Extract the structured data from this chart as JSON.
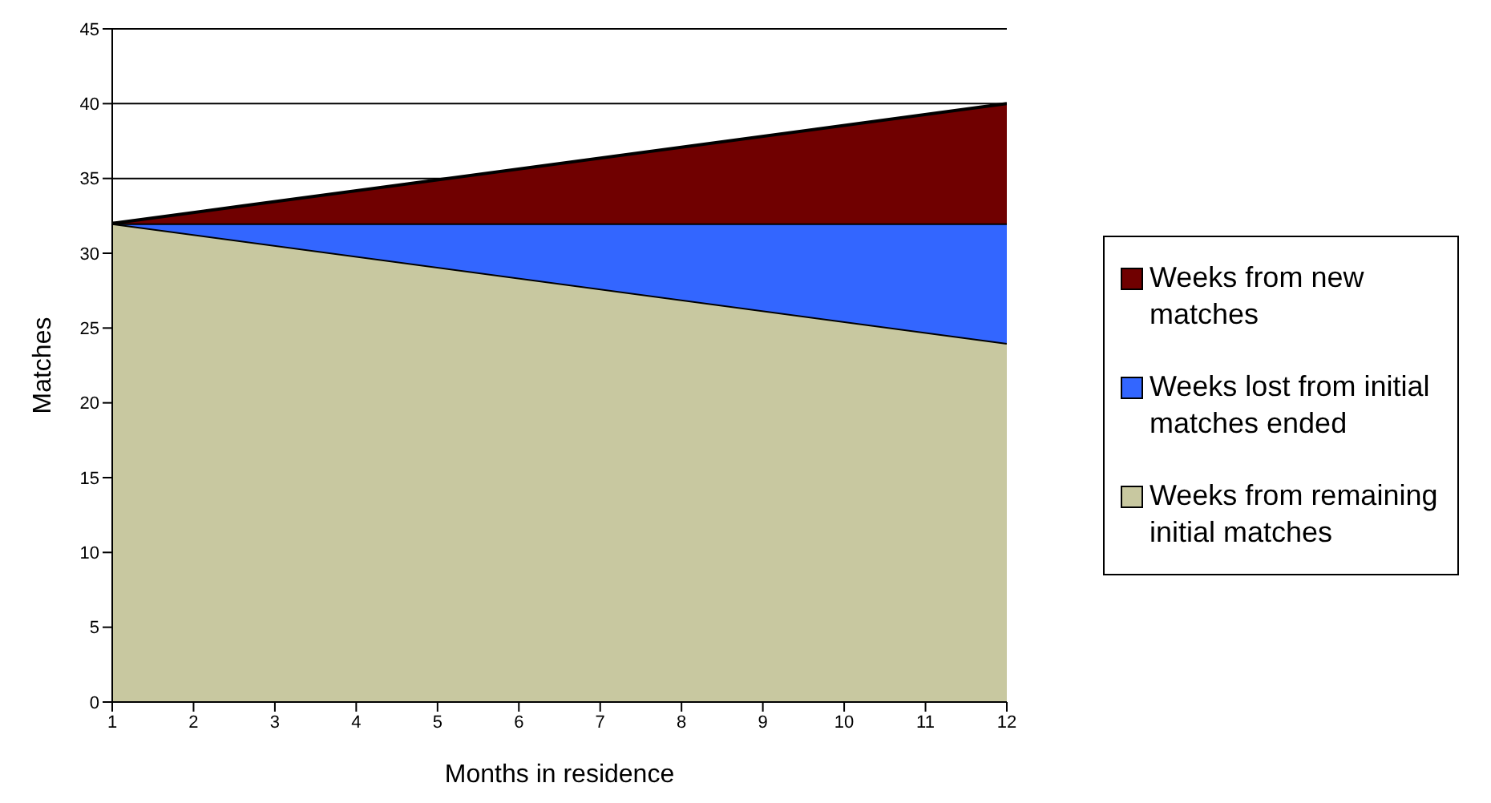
{
  "chart_data": {
    "type": "area",
    "stacked": true,
    "xlabel": "Months in residence",
    "ylabel": "Matches",
    "x": [
      1,
      12
    ],
    "series": [
      {
        "name": "Weeks from remaining initial matches",
        "color": "#c8c8a0",
        "values": [
          32,
          24
        ]
      },
      {
        "name": "Weeks lost from initial matches ended",
        "color": "#3366ff",
        "values": [
          0,
          8
        ]
      },
      {
        "name": "Weeks from new matches",
        "color": "#700000",
        "values": [
          0,
          8
        ]
      }
    ],
    "xlim": [
      1,
      12
    ],
    "xticks": [
      1,
      2,
      3,
      4,
      5,
      6,
      7,
      8,
      9,
      10,
      11,
      12
    ],
    "ylim": [
      0,
      45
    ],
    "yticks": [
      0,
      5,
      10,
      15,
      20,
      25,
      30,
      35,
      40,
      45
    ],
    "grid": "y",
    "legend": "right"
  }
}
